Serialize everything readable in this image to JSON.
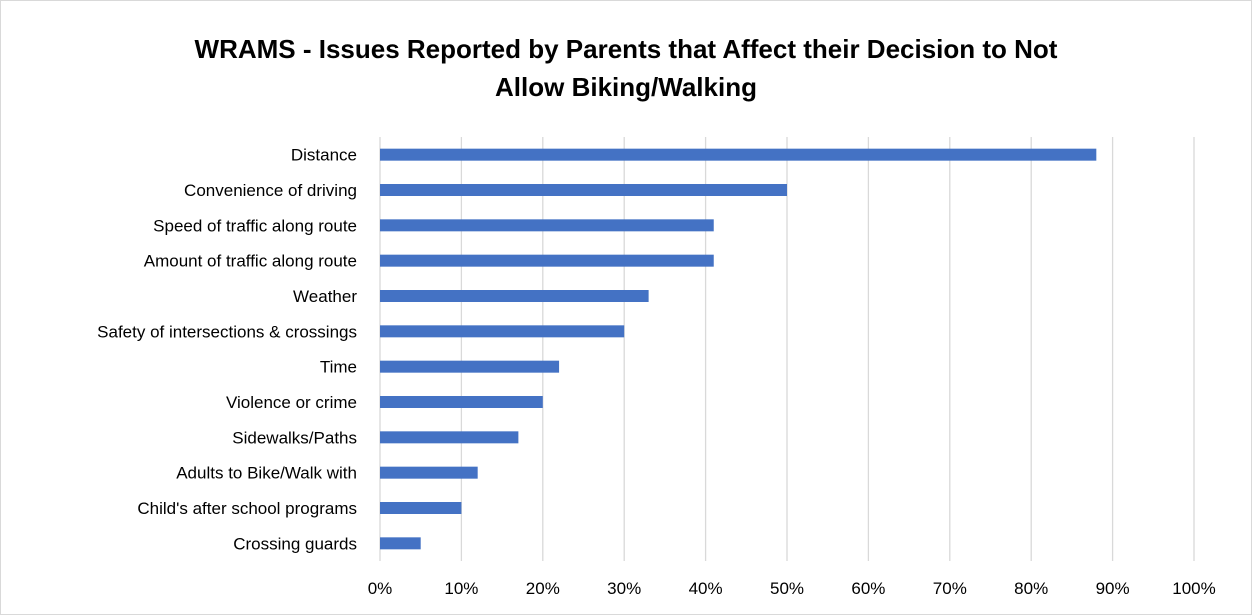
{
  "chart_data": {
    "type": "bar",
    "orientation": "horizontal",
    "title_lines": [
      "WRAMS - Issues Reported by Parents that Affect their Decision to Not",
      "Allow Biking/Walking"
    ],
    "categories": [
      "Distance",
      "Convenience of driving",
      "Speed of traffic along route",
      "Amount of traffic along route",
      "Weather",
      "Safety of intersections & crossings",
      "Time",
      "Violence or crime",
      "Sidewalks/Paths",
      "Adults to Bike/Walk with",
      "Child's after school programs",
      "Crossing guards"
    ],
    "values": [
      88,
      50,
      41,
      41,
      33,
      30,
      22,
      20,
      17,
      12,
      10,
      5
    ],
    "xlim": [
      0,
      100
    ],
    "x_ticks": [
      0,
      10,
      20,
      30,
      40,
      50,
      60,
      70,
      80,
      90,
      100
    ],
    "x_tick_labels": [
      "0%",
      "10%",
      "20%",
      "30%",
      "40%",
      "50%",
      "60%",
      "70%",
      "80%",
      "90%",
      "100%"
    ],
    "grid": true,
    "bar_color": "#4472c4",
    "grid_color": "#d9d9d9",
    "legend": "none"
  }
}
